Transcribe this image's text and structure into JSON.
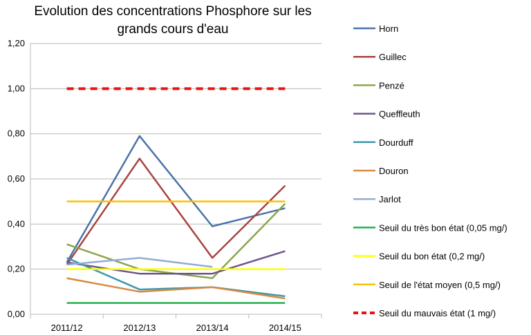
{
  "chart_data": {
    "type": "line",
    "title": [
      "Evolution des concentrations Phosphore sur les",
      "grands cours d'eau"
    ],
    "xlabel": "",
    "ylabel": "",
    "categories": [
      "2011/12",
      "2012/13",
      "2013/14",
      "2014/15"
    ],
    "ylim": [
      0,
      1.2
    ],
    "yticks": [
      "0,00",
      "0,20",
      "0,40",
      "0,60",
      "0,80",
      "1,00",
      "1,20"
    ],
    "ytick_values": [
      0,
      0.2,
      0.4,
      0.6,
      0.8,
      1.0,
      1.2
    ],
    "grid": "horizontal",
    "legend_position": "right",
    "series": [
      {
        "name": "Horn",
        "color": "#4a72a8",
        "dashed": false,
        "values": [
          0.23,
          0.79,
          0.39,
          0.47
        ]
      },
      {
        "name": "Guillec",
        "color": "#a8433f",
        "dashed": false,
        "values": [
          0.22,
          0.69,
          0.25,
          0.57
        ]
      },
      {
        "name": "Penzé",
        "color": "#89a64a",
        "dashed": false,
        "values": [
          0.31,
          0.2,
          0.16,
          0.49
        ]
      },
      {
        "name": "Queffleuth",
        "color": "#6e548e",
        "dashed": false,
        "values": [
          0.23,
          0.18,
          0.18,
          0.28
        ]
      },
      {
        "name": "Dourduff",
        "color": "#3e98ad",
        "dashed": false,
        "values": [
          0.25,
          0.11,
          0.12,
          0.08
        ]
      },
      {
        "name": "Douron",
        "color": "#d8893e",
        "dashed": false,
        "values": [
          0.16,
          0.1,
          0.12,
          0.07
        ]
      },
      {
        "name": "Jarlot",
        "color": "#94acd2",
        "dashed": false,
        "values": [
          0.22,
          0.25,
          0.21,
          null
        ]
      },
      {
        "name": "Seuil du très bon état (0,05 mg/)",
        "color": "#22b14c",
        "dashed": false,
        "values": [
          0.05,
          0.05,
          0.05,
          0.05
        ]
      },
      {
        "name": "Seuil du  bon état (0,2 mg/)",
        "color": "#ffff00",
        "dashed": false,
        "values": [
          0.2,
          0.2,
          0.2,
          0.2
        ]
      },
      {
        "name": "Seuil de l'état moyen (0,5 mg/)",
        "color": "#ffc000",
        "dashed": false,
        "values": [
          0.5,
          0.5,
          0.5,
          0.5
        ]
      },
      {
        "name": "Seuil du mauvais état (1 mg/)",
        "color": "#ee1111",
        "dashed": true,
        "values": [
          1.0,
          1.0,
          1.0,
          1.0
        ]
      }
    ]
  }
}
